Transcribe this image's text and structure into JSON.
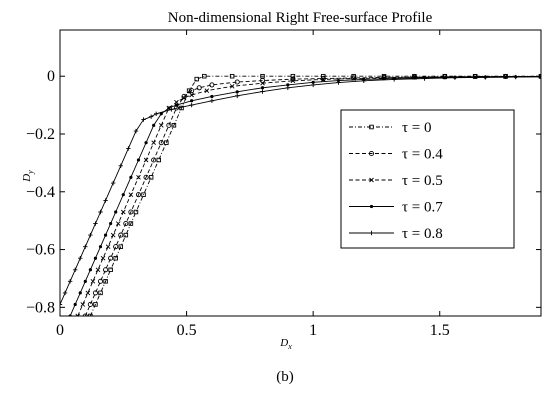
{
  "figure": {
    "caption": "(b)"
  },
  "chart_data": {
    "type": "line",
    "title": "Non-dimensional Right Free-surface Profile",
    "xlabel": "D",
    "xlabel_sub": "x",
    "ylabel": "D",
    "ylabel_sub": "y",
    "xlim": [
      0,
      1.9
    ],
    "ylim": [
      -0.83,
      0.16
    ],
    "x_ticks": [
      0,
      0.5,
      1,
      1.5
    ],
    "x_tick_labels": [
      "0",
      "0.5",
      "1",
      "1.5"
    ],
    "y_ticks": [
      0,
      -0.2,
      -0.4,
      -0.6,
      -0.8
    ],
    "y_tick_labels": [
      "0",
      "−0.2",
      "−0.4",
      "−0.6",
      "−0.8"
    ],
    "grid": false,
    "legend_position": "center-right",
    "series": [
      {
        "name": "τ = 0",
        "legend_label": "τ = 0",
        "dash": "dashdot",
        "marker": "square",
        "x": [
          0.12,
          0.14,
          0.16,
          0.18,
          0.2,
          0.22,
          0.24,
          0.26,
          0.28,
          0.3,
          0.33,
          0.36,
          0.39,
          0.42,
          0.45,
          0.48,
          0.51,
          0.54,
          0.57,
          0.68,
          0.8,
          0.92,
          1.04,
          1.16,
          1.28,
          1.4,
          1.52,
          1.64,
          1.76,
          1.9
        ],
        "y": [
          -0.83,
          -0.79,
          -0.75,
          -0.71,
          -0.67,
          -0.63,
          -0.59,
          -0.55,
          -0.51,
          -0.47,
          -0.41,
          -0.35,
          -0.29,
          -0.23,
          -0.17,
          -0.11,
          -0.05,
          -0.01,
          0.0,
          0.0,
          0.0,
          0.0,
          0.0,
          0.0,
          0.0,
          0.0,
          0.0,
          0.0,
          0.0,
          0.0
        ]
      },
      {
        "name": "τ = 0.4",
        "legend_label": "τ = 0.4",
        "dash": "dashed",
        "marker": "circle",
        "x": [
          0.1,
          0.12,
          0.14,
          0.16,
          0.18,
          0.2,
          0.22,
          0.24,
          0.26,
          0.28,
          0.31,
          0.34,
          0.37,
          0.4,
          0.43,
          0.46,
          0.49,
          0.52,
          0.55,
          0.6,
          0.7,
          0.8,
          0.92,
          1.04,
          1.16,
          1.28,
          1.4,
          1.52,
          1.64,
          1.76,
          1.9
        ],
        "y": [
          -0.83,
          -0.79,
          -0.75,
          -0.71,
          -0.67,
          -0.63,
          -0.59,
          -0.55,
          -0.51,
          -0.47,
          -0.41,
          -0.35,
          -0.29,
          -0.23,
          -0.17,
          -0.11,
          -0.07,
          -0.05,
          -0.04,
          -0.03,
          -0.02,
          -0.015,
          -0.01,
          -0.008,
          -0.006,
          -0.004,
          -0.003,
          -0.002,
          -0.001,
          -0.001,
          -0.001
        ]
      },
      {
        "name": "τ = 0.5",
        "legend_label": "τ = 0.5",
        "dash": "dashed",
        "marker": "cross",
        "x": [
          0.07,
          0.09,
          0.11,
          0.13,
          0.15,
          0.17,
          0.19,
          0.21,
          0.23,
          0.25,
          0.28,
          0.31,
          0.34,
          0.37,
          0.4,
          0.43,
          0.46,
          0.49,
          0.52,
          0.58,
          0.68,
          0.8,
          0.92,
          1.04,
          1.16,
          1.28,
          1.4,
          1.52,
          1.64,
          1.76,
          1.9
        ],
        "y": [
          -0.83,
          -0.79,
          -0.75,
          -0.71,
          -0.67,
          -0.63,
          -0.59,
          -0.55,
          -0.51,
          -0.47,
          -0.41,
          -0.35,
          -0.29,
          -0.23,
          -0.17,
          -0.11,
          -0.09,
          -0.075,
          -0.065,
          -0.05,
          -0.035,
          -0.024,
          -0.016,
          -0.011,
          -0.008,
          -0.006,
          -0.004,
          -0.003,
          -0.002,
          -0.001,
          -0.001
        ]
      },
      {
        "name": "τ = 0.7",
        "legend_label": "τ = 0.7",
        "dash": "solid",
        "marker": "dot",
        "x": [
          0.04,
          0.06,
          0.08,
          0.1,
          0.12,
          0.14,
          0.16,
          0.18,
          0.2,
          0.22,
          0.25,
          0.28,
          0.31,
          0.34,
          0.37,
          0.4,
          0.43,
          0.46,
          0.52,
          0.6,
          0.7,
          0.8,
          0.9,
          1.0,
          1.1,
          1.2,
          1.32,
          1.44,
          1.56,
          1.68,
          1.8,
          1.9
        ],
        "y": [
          -0.83,
          -0.79,
          -0.75,
          -0.71,
          -0.67,
          -0.63,
          -0.59,
          -0.55,
          -0.51,
          -0.47,
          -0.41,
          -0.35,
          -0.29,
          -0.23,
          -0.17,
          -0.13,
          -0.11,
          -0.1,
          -0.085,
          -0.07,
          -0.054,
          -0.04,
          -0.03,
          -0.021,
          -0.015,
          -0.011,
          -0.008,
          -0.005,
          -0.004,
          -0.003,
          -0.002,
          -0.002
        ]
      },
      {
        "name": "τ = 0.8",
        "legend_label": "τ = 0.8",
        "dash": "solid",
        "marker": "plus",
        "x": [
          0.0,
          0.02,
          0.04,
          0.06,
          0.08,
          0.1,
          0.12,
          0.14,
          0.16,
          0.18,
          0.21,
          0.24,
          0.27,
          0.3,
          0.33,
          0.36,
          0.38,
          0.44,
          0.52,
          0.6,
          0.7,
          0.8,
          0.9,
          1.0,
          1.1,
          1.2,
          1.32,
          1.44,
          1.56,
          1.68,
          1.8,
          1.9
        ],
        "y": [
          -0.79,
          -0.75,
          -0.71,
          -0.67,
          -0.63,
          -0.59,
          -0.55,
          -0.51,
          -0.47,
          -0.43,
          -0.37,
          -0.31,
          -0.25,
          -0.19,
          -0.15,
          -0.14,
          -0.13,
          -0.115,
          -0.1,
          -0.085,
          -0.068,
          -0.053,
          -0.04,
          -0.03,
          -0.022,
          -0.016,
          -0.011,
          -0.008,
          -0.005,
          -0.004,
          -0.003,
          -0.002
        ]
      }
    ]
  }
}
